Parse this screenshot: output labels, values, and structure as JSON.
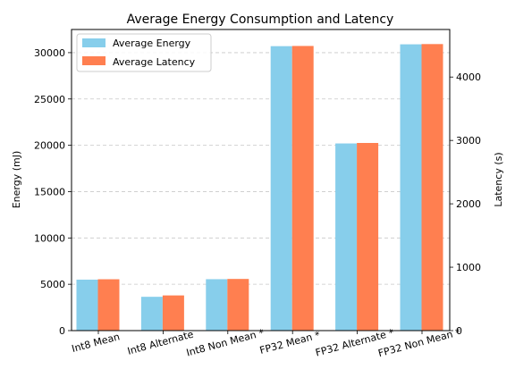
{
  "chart_data": {
    "type": "bar",
    "title": "Average Energy Consumption and Latency",
    "categories": [
      "Int8 Mean",
      "Int8 Alternate",
      "Int8 Non Mean *",
      "FP32 Mean *",
      "FP32 Alternate *",
      "FP32 Non Mean *"
    ],
    "series": [
      {
        "name": "Average Energy",
        "axis": "left",
        "color": "#87CEEB",
        "values": [
          5500,
          3650,
          5550,
          30700,
          20200,
          30900
        ]
      },
      {
        "name": "Average Latency",
        "axis": "right",
        "color": "#FF7F50",
        "values": [
          810,
          555,
          815,
          4490,
          2960,
          4520
        ]
      }
    ],
    "ylabel_left": "Energy (mJ)",
    "ylabel_right": "Latency (s)",
    "ylim_left": [
      0,
      32500
    ],
    "ylim_right": [
      0,
      4750
    ],
    "yticks_left": [
      0,
      5000,
      10000,
      15000,
      20000,
      25000,
      30000
    ],
    "yticks_right": [
      0,
      1000,
      2000,
      3000,
      4000
    ],
    "grid": "horizontal-dashed",
    "legend_position": "upper-left"
  }
}
